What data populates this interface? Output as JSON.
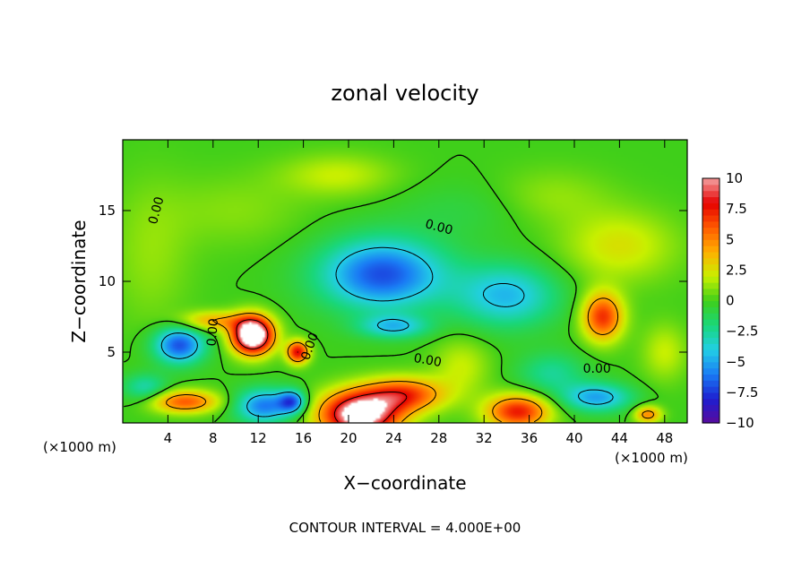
{
  "chart_data": {
    "type": "heatmap",
    "title": "zonal velocity",
    "xlabel": "X−coordinate",
    "ylabel": "Z−coordinate",
    "x_unit_label_left": "(×1000 m)",
    "x_unit_label_right": "(×1000 m)",
    "footer": "CONTOUR INTERVAL = 4.000E+00",
    "xlim": [
      0,
      50
    ],
    "ylim": [
      0,
      20
    ],
    "xticks": [
      4,
      8,
      12,
      16,
      20,
      24,
      28,
      32,
      36,
      40,
      44,
      48
    ],
    "yticks": [
      5,
      10,
      15
    ],
    "colorbar": {
      "range": [
        -10,
        10
      ],
      "ticks": [
        "10",
        "7.5",
        "5",
        "2.5",
        "0",
        "−2.5",
        "−5",
        "−7.5",
        "−10"
      ],
      "tick_values": [
        10,
        7.5,
        5,
        2.5,
        0,
        -2.5,
        -5,
        -7.5,
        -10
      ],
      "colors": [
        "#5a0a9c",
        "#1d1fd0",
        "#1a7cf5",
        "#22cfe6",
        "#19d77a",
        "#3fcf1a",
        "#c8f000",
        "#ffb000",
        "#ff5a00",
        "#e60000",
        "#f4a0a0",
        "#ffffff"
      ]
    },
    "contour_labels": [
      {
        "text": "0.00",
        "x": 3.0,
        "y": 15.0,
        "rot": -75
      },
      {
        "text": "0.00",
        "x": 28.0,
        "y": 13.8,
        "rot": 15
      },
      {
        "text": "0.00",
        "x": 8.0,
        "y": 6.4,
        "rot": -85
      },
      {
        "text": "0.00",
        "x": 16.6,
        "y": 5.4,
        "rot": -70
      },
      {
        "text": "0.00",
        "x": 27.0,
        "y": 4.4,
        "rot": 10
      },
      {
        "text": "0.00",
        "x": 42.0,
        "y": 3.8,
        "rot": 0
      }
    ],
    "features": [
      {
        "x": 23,
        "y": 10.5,
        "sx": 5.5,
        "sy": 2.5,
        "a": -7
      },
      {
        "x": 34,
        "y": 9,
        "sx": 4.5,
        "sy": 2.2,
        "a": -4.5
      },
      {
        "x": 24,
        "y": 6.8,
        "sx": 3,
        "sy": 0.8,
        "a": -4
      },
      {
        "x": 5,
        "y": 5.5,
        "sx": 2.2,
        "sy": 1.3,
        "a": -7
      },
      {
        "x": 11.5,
        "y": 6.2,
        "sx": 1.8,
        "sy": 1.3,
        "a": 14
      },
      {
        "x": 8,
        "y": 7.2,
        "sx": 3,
        "sy": 0.7,
        "a": 4
      },
      {
        "x": 15.5,
        "y": 5,
        "sx": 1.0,
        "sy": 0.8,
        "a": 8
      },
      {
        "x": 42.5,
        "y": 7.5,
        "sx": 1.8,
        "sy": 1.7,
        "a": 7
      },
      {
        "x": 21,
        "y": 0.6,
        "sx": 3.5,
        "sy": 1.6,
        "a": 12
      },
      {
        "x": 25,
        "y": 2.0,
        "sx": 3.5,
        "sy": 1.2,
        "a": 6.5
      },
      {
        "x": 35,
        "y": 0.8,
        "sx": 2.8,
        "sy": 1.2,
        "a": 7.5
      },
      {
        "x": 5.5,
        "y": 1.5,
        "sx": 3,
        "sy": 0.8,
        "a": 6
      },
      {
        "x": 12.5,
        "y": 1.2,
        "sx": 2.5,
        "sy": 1.2,
        "a": -6
      },
      {
        "x": 44,
        "y": 12.5,
        "sx": 5,
        "sy": 2.5,
        "a": 2.5
      },
      {
        "x": 19,
        "y": 17.5,
        "sx": 5,
        "sy": 1.5,
        "a": 2
      },
      {
        "x": 2.5,
        "y": 12,
        "sx": 3.5,
        "sy": 5,
        "a": 1.2
      },
      {
        "x": 42,
        "y": 1.8,
        "sx": 3,
        "sy": 1.0,
        "a": -5
      },
      {
        "x": 15,
        "y": 1.5,
        "sx": 1.2,
        "sy": 0.8,
        "a": -6
      },
      {
        "x": 46.5,
        "y": 0.6,
        "sx": 1.2,
        "sy": 0.6,
        "a": 5
      },
      {
        "x": 30,
        "y": 15,
        "sx": 6,
        "sy": 2,
        "a": -0.8
      },
      {
        "x": 10,
        "y": 15,
        "sx": 6,
        "sy": 2.5,
        "a": 1.0
      },
      {
        "x": 38,
        "y": 16,
        "sx": 5,
        "sy": 2,
        "a": 1.2
      },
      {
        "x": 30,
        "y": 4,
        "sx": 2.5,
        "sy": 2,
        "a": 2
      },
      {
        "x": 48,
        "y": 5,
        "sx": 2,
        "sy": 2,
        "a": 2
      },
      {
        "x": 2,
        "y": 2.5,
        "sx": 2,
        "sy": 1.0,
        "a": -3
      },
      {
        "x": 38,
        "y": 3.5,
        "sx": 3,
        "sy": 1.5,
        "a": -2.5
      }
    ]
  }
}
